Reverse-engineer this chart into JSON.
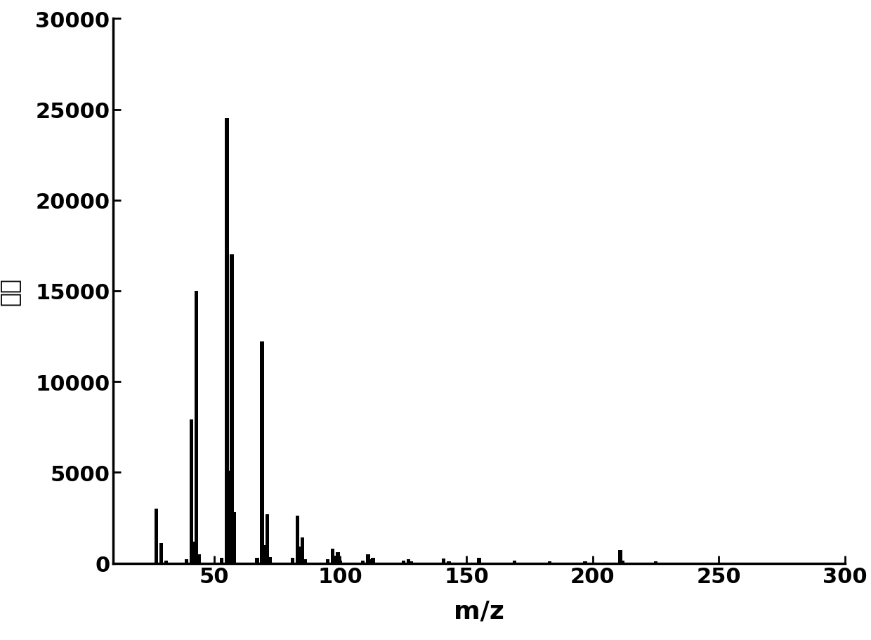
{
  "mz_values": [
    27,
    29,
    31,
    39,
    41,
    42,
    43,
    44,
    53,
    55,
    56,
    57,
    58,
    67,
    69,
    70,
    71,
    72,
    81,
    83,
    84,
    85,
    86,
    95,
    97,
    98,
    99,
    100,
    109,
    111,
    112,
    113,
    125,
    127,
    128,
    141,
    143,
    155,
    169,
    183,
    197,
    211,
    212,
    225
  ],
  "intensities": [
    3000,
    1100,
    150,
    200,
    7900,
    1200,
    15000,
    500,
    300,
    24500,
    5100,
    17000,
    2800,
    300,
    12200,
    1000,
    2700,
    350,
    300,
    2600,
    900,
    1400,
    200,
    200,
    800,
    400,
    600,
    150,
    150,
    500,
    200,
    300,
    150,
    200,
    100,
    250,
    100,
    300,
    150,
    100,
    100,
    700,
    150,
    100
  ],
  "xlabel": "m/z",
  "ylabel": "丰度",
  "xlim": [
    10,
    300
  ],
  "ylim": [
    0,
    30000
  ],
  "xticks": [
    50,
    100,
    150,
    200,
    250,
    300
  ],
  "yticks": [
    0,
    5000,
    10000,
    15000,
    20000,
    25000,
    30000
  ],
  "bar_color": "#000000",
  "bar_width": 1.5,
  "background_color": "#ffffff",
  "xlabel_fontsize": 26,
  "ylabel_fontsize": 24,
  "tick_fontsize": 22,
  "spine_linewidth": 2.5
}
